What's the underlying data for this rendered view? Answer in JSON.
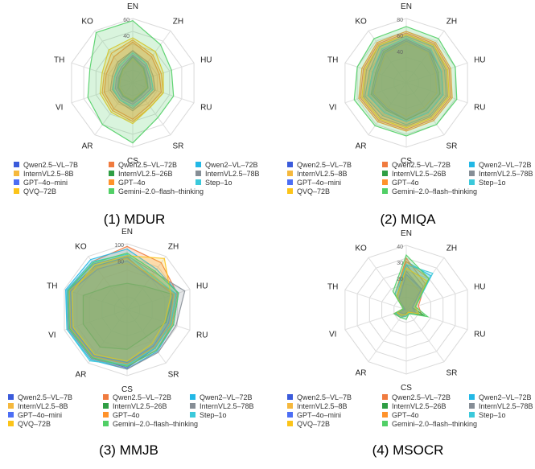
{
  "legend": [
    {
      "name": "Qwen2.5–VL–7B",
      "color": "#3b5bdb"
    },
    {
      "name": "Qwen2.5–VL–72B",
      "color": "#f07b3f"
    },
    {
      "name": "Qwen2–VL–72B",
      "color": "#22b8e6"
    },
    {
      "name": "InternVL2.5–8B",
      "color": "#f5b83d"
    },
    {
      "name": "InternVL2.5–26B",
      "color": "#2f9e44"
    },
    {
      "name": "InternVL2.5–78B",
      "color": "#868e96"
    },
    {
      "name": "GPT–4o–mini",
      "color": "#4c6ef5"
    },
    {
      "name": "GPT–4o",
      "color": "#ff922b"
    },
    {
      "name": "Step–1o",
      "color": "#3bc9db"
    },
    {
      "name": "QVQ–72B",
      "color": "#fcc419"
    },
    {
      "name": "Gemini–2.0–flash–thinking",
      "color": "#51cf66"
    }
  ],
  "chart_data": [
    {
      "type": "radar",
      "title": "(1) MDUR",
      "axes": [
        "EN",
        "ZH",
        "HU",
        "RU",
        "SR",
        "CS",
        "AR",
        "VI",
        "TH",
        "KO"
      ],
      "rmax": 60,
      "ticks": [
        "60",
        "40"
      ],
      "series": [
        {
          "name": "Qwen2.5–VL–7B",
          "values": [
            25,
            18,
            14,
            15,
            14,
            18,
            16,
            15,
            14,
            16
          ]
        },
        {
          "name": "Qwen2.5–VL–72B",
          "values": [
            38,
            30,
            26,
            28,
            26,
            34,
            30,
            28,
            26,
            30
          ]
        },
        {
          "name": "Qwen2–VL–72B",
          "values": [
            30,
            22,
            18,
            20,
            18,
            24,
            20,
            20,
            18,
            22
          ]
        },
        {
          "name": "InternVL2.5–8B",
          "values": [
            22,
            16,
            12,
            14,
            12,
            16,
            14,
            13,
            12,
            15
          ]
        },
        {
          "name": "InternVL2.5–26B",
          "values": [
            24,
            17,
            13,
            15,
            13,
            17,
            15,
            14,
            13,
            16
          ]
        },
        {
          "name": "InternVL2.5–78B",
          "values": [
            30,
            24,
            20,
            22,
            20,
            26,
            22,
            22,
            20,
            24
          ]
        },
        {
          "name": "GPT–4o–mini",
          "values": [
            26,
            20,
            16,
            18,
            16,
            20,
            18,
            17,
            16,
            18
          ]
        },
        {
          "name": "GPT–4o",
          "values": [
            40,
            32,
            28,
            30,
            28,
            36,
            32,
            30,
            28,
            34
          ]
        },
        {
          "name": "Step–1o",
          "values": [
            28,
            22,
            18,
            20,
            18,
            22,
            20,
            19,
            18,
            20
          ]
        },
        {
          "name": "QVQ–72B",
          "values": [
            42,
            36,
            30,
            30,
            28,
            38,
            34,
            32,
            30,
            38
          ]
        },
        {
          "name": "Gemini–2.0–flash–thinking",
          "values": [
            58,
            44,
            38,
            40,
            40,
            56,
            48,
            44,
            42,
            58
          ]
        }
      ]
    },
    {
      "type": "radar",
      "title": "(2) MIQA",
      "axes": [
        "EN",
        "ZH",
        "HU",
        "RU",
        "SR",
        "CS",
        "AR",
        "VI",
        "TH",
        "KO"
      ],
      "rmax": 80,
      "ticks": [
        "80",
        "60",
        "40"
      ],
      "series": [
        {
          "name": "Qwen2.5–VL–7B",
          "values": [
            52,
            48,
            40,
            44,
            42,
            46,
            40,
            44,
            38,
            46
          ]
        },
        {
          "name": "Qwen2.5–VL–72B",
          "values": [
            62,
            60,
            56,
            58,
            56,
            58,
            58,
            60,
            56,
            60
          ]
        },
        {
          "name": "Qwen2–VL–72B",
          "values": [
            58,
            56,
            50,
            52,
            50,
            52,
            50,
            54,
            48,
            56
          ]
        },
        {
          "name": "InternVL2.5–8B",
          "values": [
            50,
            46,
            38,
            40,
            38,
            42,
            38,
            42,
            36,
            44
          ]
        },
        {
          "name": "InternVL2.5–26B",
          "values": [
            54,
            50,
            42,
            44,
            42,
            46,
            42,
            46,
            40,
            48
          ]
        },
        {
          "name": "InternVL2.5–78B",
          "values": [
            60,
            58,
            52,
            54,
            52,
            54,
            54,
            56,
            52,
            58
          ]
        },
        {
          "name": "GPT–4o–mini",
          "values": [
            54,
            50,
            46,
            48,
            46,
            48,
            46,
            50,
            44,
            50
          ]
        },
        {
          "name": "GPT–4o",
          "values": [
            64,
            62,
            58,
            60,
            58,
            60,
            60,
            62,
            58,
            62
          ]
        },
        {
          "name": "Step–1o",
          "values": [
            56,
            52,
            46,
            48,
            46,
            48,
            46,
            50,
            44,
            52
          ]
        },
        {
          "name": "QVQ–72B",
          "values": [
            60,
            58,
            54,
            56,
            54,
            56,
            56,
            58,
            54,
            58
          ]
        },
        {
          "name": "Gemini–2.0–flash–thinking",
          "values": [
            70,
            68,
            64,
            66,
            64,
            66,
            66,
            68,
            64,
            68
          ]
        }
      ]
    },
    {
      "type": "radar",
      "title": "(3) MMJB",
      "axes": [
        "EN",
        "ZH",
        "HU",
        "RU",
        "SR",
        "CS",
        "AR",
        "VI",
        "TH",
        "KO"
      ],
      "rmax": 100,
      "ticks": [
        "100",
        "80"
      ],
      "series": [
        {
          "name": "Qwen2.5–VL–7B",
          "values": [
            80,
            60,
            78,
            70,
            72,
            88,
            90,
            92,
            94,
            82
          ]
        },
        {
          "name": "Qwen2.5–VL–72B",
          "values": [
            96,
            88,
            80,
            72,
            76,
            86,
            92,
            94,
            96,
            90
          ]
        },
        {
          "name": "Qwen2–VL–72B",
          "values": [
            92,
            76,
            82,
            74,
            78,
            90,
            94,
            96,
            98,
            94
          ]
        },
        {
          "name": "InternVL2.5–8B",
          "values": [
            70,
            66,
            76,
            72,
            70,
            82,
            88,
            90,
            92,
            78
          ]
        },
        {
          "name": "InternVL2.5–26B",
          "values": [
            40,
            44,
            74,
            62,
            50,
            60,
            70,
            70,
            70,
            44
          ]
        },
        {
          "name": "InternVL2.5–78B",
          "values": [
            82,
            70,
            92,
            78,
            80,
            90,
            92,
            94,
            96,
            86
          ]
        },
        {
          "name": "GPT–4o–mini",
          "values": [
            74,
            60,
            74,
            66,
            68,
            80,
            86,
            88,
            90,
            76
          ]
        },
        {
          "name": "GPT–4o",
          "values": [
            78,
            62,
            74,
            68,
            70,
            82,
            88,
            90,
            92,
            80
          ]
        },
        {
          "name": "Step–1o",
          "values": [
            84,
            64,
            78,
            70,
            72,
            84,
            96,
            96,
            96,
            90
          ]
        },
        {
          "name": "QVQ–72B",
          "values": [
            82,
            96,
            70,
            60,
            64,
            78,
            84,
            86,
            88,
            84
          ]
        },
        {
          "name": "Gemini–2.0–flash–thinking",
          "values": [
            86,
            72,
            82,
            74,
            76,
            86,
            90,
            92,
            94,
            88
          ]
        }
      ]
    },
    {
      "type": "radar",
      "title": "(4) MSOCR",
      "axes": [
        "EN",
        "ZH",
        "HU",
        "RU",
        "SR",
        "CS",
        "AR",
        "VI",
        "TH",
        "KO"
      ],
      "rmax": 40,
      "ticks": [
        "40",
        "30",
        "20"
      ],
      "series": [
        {
          "name": "Qwen2.5–VL–7B",
          "values": [
            24,
            16,
            4,
            6,
            2,
            3,
            4,
            6,
            2,
            10
          ]
        },
        {
          "name": "Qwen2.5–VL–72B",
          "values": [
            32,
            20,
            8,
            10,
            3,
            4,
            6,
            8,
            2,
            12
          ]
        },
        {
          "name": "Qwen2–VL–72B",
          "values": [
            30,
            26,
            6,
            8,
            2,
            3,
            5,
            6,
            2,
            10
          ]
        },
        {
          "name": "InternVL2.5–8B",
          "values": [
            20,
            14,
            4,
            6,
            2,
            2,
            3,
            4,
            1,
            8
          ]
        },
        {
          "name": "InternVL2.5–26B",
          "values": [
            22,
            16,
            4,
            12,
            2,
            2,
            4,
            6,
            1,
            8
          ]
        },
        {
          "name": "InternVL2.5–78B",
          "values": [
            28,
            18,
            6,
            8,
            2,
            3,
            4,
            6,
            2,
            10
          ]
        },
        {
          "name": "GPT–4o–mini",
          "values": [
            22,
            16,
            4,
            6,
            2,
            3,
            3,
            5,
            1,
            8
          ]
        },
        {
          "name": "GPT–4o",
          "values": [
            30,
            24,
            6,
            8,
            2,
            4,
            5,
            7,
            2,
            12
          ]
        },
        {
          "name": "Step–1o",
          "values": [
            28,
            28,
            6,
            8,
            3,
            4,
            6,
            7,
            2,
            12
          ]
        },
        {
          "name": "QVQ–72B",
          "values": [
            26,
            22,
            6,
            8,
            2,
            3,
            4,
            6,
            2,
            10
          ]
        },
        {
          "name": "Gemini–2.0–flash–thinking",
          "values": [
            34,
            24,
            6,
            14,
            3,
            6,
            6,
            8,
            2,
            14
          ]
        }
      ]
    }
  ]
}
